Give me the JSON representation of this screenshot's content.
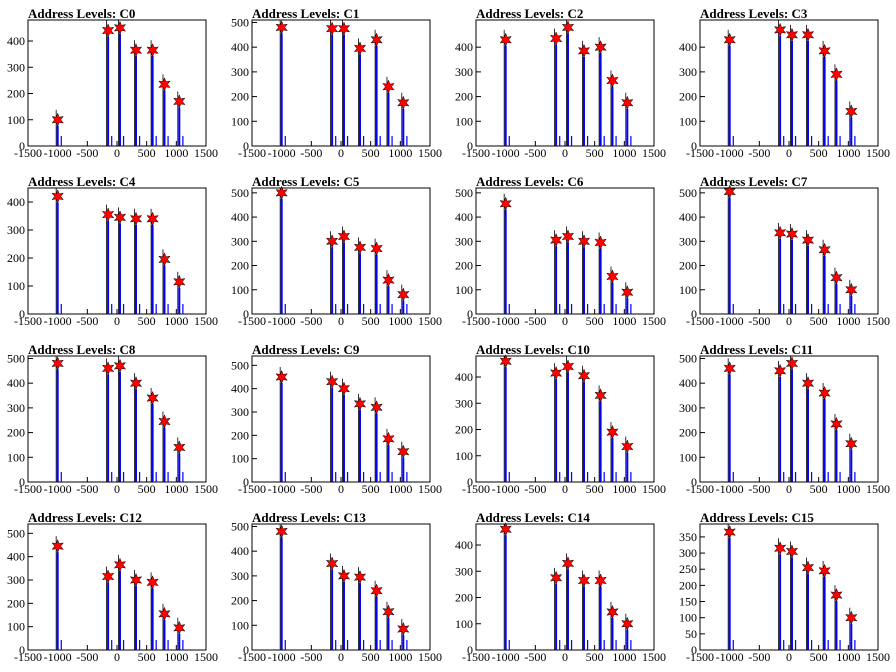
{
  "chart_data": [
    {
      "type": "bar",
      "title": "Address Levels: C0",
      "x_ticks": [
        -1500,
        -1000,
        -500,
        0,
        500,
        1000,
        1500
      ],
      "xlim": [
        -1500,
        1500
      ],
      "ylim": [
        0,
        480
      ],
      "y_ticks": [
        0,
        100,
        200,
        300,
        400
      ],
      "x": [
        -1000,
        -150,
        50,
        320,
        600,
        800,
        1050
      ],
      "values": [
        100,
        440,
        450,
        365,
        365,
        235,
        170
      ]
    },
    {
      "type": "bar",
      "title": "Address Levels: C1",
      "x_ticks": [
        -1500,
        -1000,
        -500,
        0,
        500,
        1000,
        1500
      ],
      "xlim": [
        -1500,
        1500
      ],
      "ylim": [
        0,
        510
      ],
      "y_ticks": [
        0,
        100,
        200,
        300,
        400,
        500
      ],
      "x": [
        -1000,
        -150,
        50,
        320,
        600,
        800,
        1050
      ],
      "values": [
        480,
        475,
        475,
        395,
        430,
        240,
        175
      ]
    },
    {
      "type": "bar",
      "title": "Address Levels: C2",
      "x_ticks": [
        -1500,
        -1000,
        -500,
        0,
        500,
        1000,
        1500
      ],
      "xlim": [
        -1500,
        1500
      ],
      "ylim": [
        0,
        510
      ],
      "y_ticks": [
        0,
        100,
        200,
        300,
        400
      ],
      "x": [
        -1000,
        -150,
        50,
        320,
        600,
        800,
        1050
      ],
      "values": [
        430,
        435,
        480,
        385,
        400,
        265,
        175
      ]
    },
    {
      "type": "bar",
      "title": "Address Levels: C3",
      "x_ticks": [
        -1500,
        -1000,
        -500,
        0,
        500,
        1000,
        1500
      ],
      "xlim": [
        -1500,
        1500
      ],
      "ylim": [
        0,
        510
      ],
      "y_ticks": [
        0,
        100,
        200,
        300,
        400
      ],
      "x": [
        -1000,
        -150,
        50,
        320,
        600,
        800,
        1050
      ],
      "values": [
        430,
        470,
        450,
        450,
        385,
        290,
        140
      ]
    },
    {
      "type": "bar",
      "title": "Address Levels: C4",
      "x_ticks": [
        -1500,
        -1000,
        -500,
        0,
        500,
        1000,
        1500
      ],
      "xlim": [
        -1500,
        1500
      ],
      "ylim": [
        0,
        450
      ],
      "y_ticks": [
        0,
        100,
        200,
        300,
        400
      ],
      "x": [
        -1000,
        -150,
        50,
        320,
        600,
        800,
        1050
      ],
      "values": [
        420,
        355,
        345,
        340,
        340,
        195,
        115
      ]
    },
    {
      "type": "bar",
      "title": "Address Levels: C5",
      "x_ticks": [
        -1500,
        -1000,
        -500,
        0,
        500,
        1000,
        1500
      ],
      "xlim": [
        -1500,
        1500
      ],
      "ylim": [
        0,
        520
      ],
      "y_ticks": [
        0,
        100,
        200,
        300,
        400,
        500
      ],
      "x": [
        -1000,
        -150,
        50,
        320,
        600,
        800,
        1050
      ],
      "values": [
        500,
        300,
        320,
        275,
        270,
        140,
        80
      ]
    },
    {
      "type": "bar",
      "title": "Address Levels: C6",
      "x_ticks": [
        -1500,
        -1000,
        -500,
        0,
        500,
        1000,
        1500
      ],
      "xlim": [
        -1500,
        1500
      ],
      "ylim": [
        0,
        520
      ],
      "y_ticks": [
        0,
        100,
        200,
        300,
        400,
        500
      ],
      "x": [
        -1000,
        -150,
        50,
        320,
        600,
        800,
        1050
      ],
      "values": [
        455,
        305,
        320,
        300,
        295,
        155,
        90
      ]
    },
    {
      "type": "bar",
      "title": "Address Levels: C7",
      "x_ticks": [
        -1500,
        -1000,
        -500,
        0,
        500,
        1000,
        1500
      ],
      "xlim": [
        -1500,
        1500
      ],
      "ylim": [
        0,
        520
      ],
      "y_ticks": [
        0,
        100,
        200,
        300,
        400,
        500
      ],
      "x": [
        -1000,
        -150,
        50,
        320,
        600,
        800,
        1050
      ],
      "values": [
        505,
        335,
        330,
        305,
        265,
        150,
        100
      ]
    },
    {
      "type": "bar",
      "title": "Address Levels: C8",
      "x_ticks": [
        -1500,
        -1000,
        -500,
        0,
        500,
        1000,
        1500
      ],
      "xlim": [
        -1500,
        1500
      ],
      "ylim": [
        0,
        510
      ],
      "y_ticks": [
        0,
        100,
        200,
        300,
        400,
        500
      ],
      "x": [
        -1000,
        -150,
        50,
        320,
        600,
        800,
        1050
      ],
      "values": [
        480,
        460,
        470,
        400,
        340,
        245,
        140
      ]
    },
    {
      "type": "bar",
      "title": "Address Levels: C9",
      "x_ticks": [
        -1500,
        -1000,
        -500,
        0,
        500,
        1000,
        1500
      ],
      "xlim": [
        -1500,
        1500
      ],
      "ylim": [
        0,
        540
      ],
      "y_ticks": [
        0,
        100,
        200,
        300,
        400,
        500
      ],
      "x": [
        -1000,
        -150,
        50,
        320,
        600,
        800,
        1050
      ],
      "values": [
        450,
        430,
        400,
        335,
        320,
        185,
        130
      ]
    },
    {
      "type": "bar",
      "title": "Address Levels: C10",
      "x_ticks": [
        -1500,
        -1000,
        -500,
        0,
        500,
        1000,
        1500
      ],
      "xlim": [
        -1500,
        1500
      ],
      "ylim": [
        0,
        480
      ],
      "y_ticks": [
        0,
        100,
        200,
        300,
        400
      ],
      "x": [
        -1000,
        -150,
        50,
        320,
        600,
        800,
        1050
      ],
      "values": [
        460,
        415,
        440,
        405,
        330,
        190,
        135
      ]
    },
    {
      "type": "bar",
      "title": "Address Levels: C11",
      "x_ticks": [
        -1500,
        -1000,
        -500,
        0,
        500,
        1000,
        1500
      ],
      "xlim": [
        -1500,
        1500
      ],
      "ylim": [
        0,
        510
      ],
      "y_ticks": [
        0,
        100,
        200,
        300,
        400,
        500
      ],
      "x": [
        -1000,
        -150,
        50,
        320,
        600,
        800,
        1050
      ],
      "values": [
        460,
        450,
        480,
        400,
        360,
        235,
        155
      ]
    },
    {
      "type": "bar",
      "title": "Address Levels: C12",
      "x_ticks": [
        -1500,
        -1000,
        -500,
        0,
        500,
        1000,
        1500
      ],
      "xlim": [
        -1500,
        1500
      ],
      "ylim": [
        0,
        540
      ],
      "y_ticks": [
        0,
        100,
        200,
        300,
        400,
        500
      ],
      "x": [
        -1000,
        -150,
        50,
        320,
        600,
        800,
        1050
      ],
      "values": [
        445,
        315,
        365,
        300,
        290,
        155,
        95
      ]
    },
    {
      "type": "bar",
      "title": "Address Levels: C13",
      "x_ticks": [
        -1500,
        -1000,
        -500,
        0,
        500,
        1000,
        1500
      ],
      "xlim": [
        -1500,
        1500
      ],
      "ylim": [
        0,
        510
      ],
      "y_ticks": [
        0,
        100,
        200,
        300,
        400,
        500
      ],
      "x": [
        -1000,
        -150,
        50,
        320,
        600,
        800,
        1050
      ],
      "values": [
        480,
        350,
        300,
        295,
        240,
        155,
        85
      ]
    },
    {
      "type": "bar",
      "title": "Address Levels: C14",
      "x_ticks": [
        -1500,
        -1000,
        -500,
        0,
        500,
        1000,
        1500
      ],
      "xlim": [
        -1500,
        1500
      ],
      "ylim": [
        0,
        480
      ],
      "y_ticks": [
        0,
        100,
        200,
        300,
        400
      ],
      "x": [
        -1000,
        -150,
        50,
        320,
        600,
        800,
        1050
      ],
      "values": [
        460,
        275,
        330,
        265,
        265,
        145,
        100
      ]
    },
    {
      "type": "bar",
      "title": "Address Levels: C15",
      "x_ticks": [
        -1500,
        -1000,
        -500,
        0,
        500,
        1000,
        1500
      ],
      "xlim": [
        -1500,
        1500
      ],
      "ylim": [
        0,
        390
      ],
      "y_ticks": [
        0,
        50,
        100,
        150,
        200,
        250,
        300,
        350
      ],
      "x": [
        -1000,
        -150,
        50,
        320,
        600,
        800,
        1050
      ],
      "values": [
        365,
        315,
        305,
        255,
        245,
        170,
        100
      ]
    }
  ],
  "colors": {
    "bar": "#0000ff",
    "outline": "#000000",
    "marker": "#ff0000"
  },
  "marker_icon": "star-marker-icon"
}
